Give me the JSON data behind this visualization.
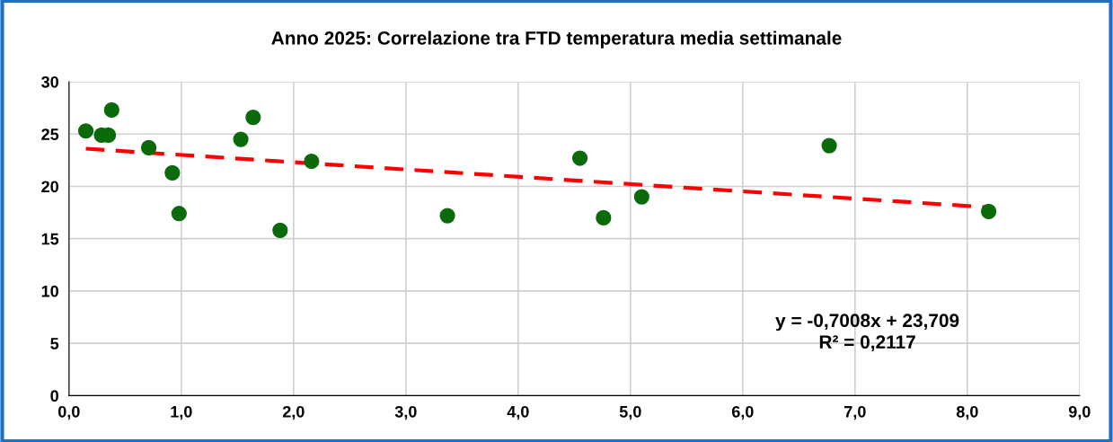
{
  "chart_data": {
    "type": "scatter",
    "title": "Anno 2025: Correlazione tra FTD temperatura media settimanale",
    "x": [
      0.15,
      0.29,
      0.35,
      0.38,
      0.71,
      0.92,
      0.98,
      1.53,
      1.64,
      1.88,
      2.16,
      3.37,
      4.55,
      4.76,
      5.1,
      6.77,
      8.19
    ],
    "series": [
      {
        "color": "#0b6b0b",
        "marker": "circle",
        "values": [
          25.3,
          24.9,
          24.9,
          27.3,
          23.7,
          21.3,
          17.4,
          24.5,
          26.6,
          15.8,
          22.4,
          17.2,
          22.7,
          17.0,
          19.0,
          23.9,
          17.6
        ]
      },
      {
        "type": "line",
        "color": "#ff0000",
        "line_style": "dashed",
        "x": [
          0.15,
          8.19
        ],
        "values": [
          23.6,
          18.0
        ]
      }
    ],
    "annotations": [
      "y = -0,7008x + 23,709\nR² = 0,2117"
    ],
    "xlim": [
      0,
      9
    ],
    "ylim": [
      0,
      30
    ],
    "xticks": [
      {
        "value": 0,
        "label": "0,0"
      },
      {
        "value": 1,
        "label": "1,0"
      },
      {
        "value": 2,
        "label": "2,0"
      },
      {
        "value": 3,
        "label": "3,0"
      },
      {
        "value": 4,
        "label": "4,0"
      },
      {
        "value": 5,
        "label": "5,0"
      },
      {
        "value": 6,
        "label": "6,0"
      },
      {
        "value": 7,
        "label": "7,0"
      },
      {
        "value": 8,
        "label": "8,0"
      },
      {
        "value": 9,
        "label": "9,0"
      }
    ],
    "yticks": [
      0,
      5,
      10,
      15,
      20,
      25,
      30
    ],
    "grid": true,
    "legend": false
  }
}
